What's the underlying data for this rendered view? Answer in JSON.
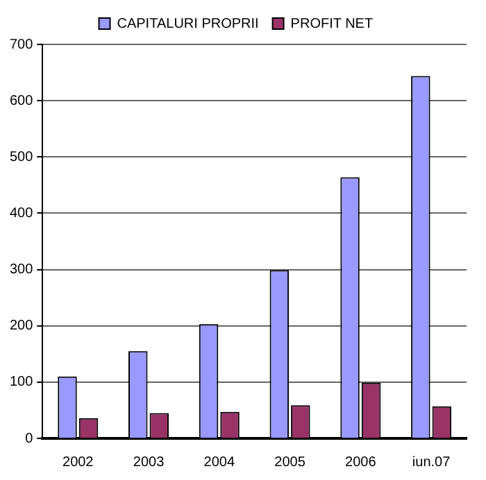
{
  "chart_data": {
    "type": "bar",
    "categories": [
      "2002",
      "2003",
      "2004",
      "2005",
      "2006",
      "iun.07"
    ],
    "series": [
      {
        "name": "CAPITALURI PROPRII",
        "color": "#9999ff",
        "values": [
          110,
          155,
          203,
          299,
          464,
          644
        ]
      },
      {
        "name": "PROFIT NET",
        "color": "#993366",
        "values": [
          36,
          45,
          47,
          59,
          99,
          57
        ]
      }
    ],
    "ylim": [
      0,
      700
    ],
    "yticks": [
      0,
      100,
      200,
      300,
      400,
      500,
      600,
      700
    ],
    "grid": "y",
    "legend": "top"
  }
}
